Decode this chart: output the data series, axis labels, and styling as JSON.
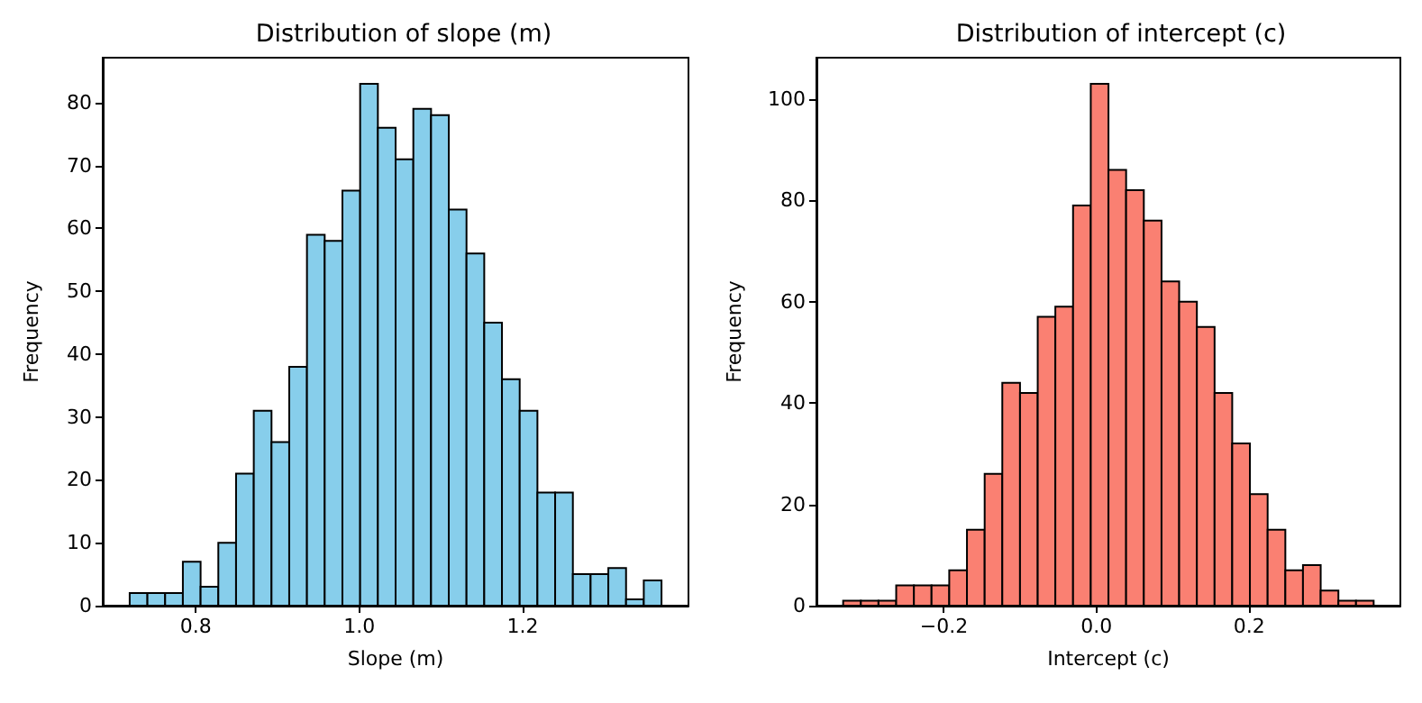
{
  "chart_data": [
    {
      "type": "histogram",
      "title": "Distribution of slope (m)",
      "xlabel": "Slope (m)",
      "ylabel": "Frequency",
      "color": "#87ceeb",
      "bins": [
        0.719,
        0.7407,
        0.7624,
        0.7841,
        0.8058,
        0.8275,
        0.8492,
        0.8709,
        0.8926,
        0.9143,
        0.936,
        0.9577,
        0.9794,
        1.0011,
        1.0228,
        1.0445,
        1.0662,
        1.0879,
        1.1096,
        1.1313,
        1.153,
        1.1747,
        1.1964,
        1.2181,
        1.2398,
        1.2615,
        1.2832,
        1.3049,
        1.3266,
        1.3483,
        1.37
      ],
      "values": [
        2,
        2,
        2,
        7,
        3,
        10,
        21,
        31,
        26,
        38,
        59,
        58,
        66,
        83,
        76,
        71,
        79,
        78,
        63,
        56,
        45,
        36,
        31,
        18,
        18,
        5,
        5,
        6,
        1,
        4
      ],
      "xlim": [
        0.686,
        1.403
      ],
      "xticks": [
        0.8,
        {
          "value": 1,
          "label": "1.0"
        },
        1.2
      ],
      "ylim": [
        0,
        87.15
      ],
      "yticks": [
        0,
        10,
        20,
        30,
        40,
        50,
        60,
        70,
        80
      ]
    },
    {
      "type": "histogram",
      "title": "Distribution of intercept (c)",
      "xlabel": "Intercept (c)",
      "ylabel": "Frequency",
      "color": "#fa8072",
      "bins": [
        -0.332,
        -0.3088,
        -0.2857,
        -0.2625,
        -0.2393,
        -0.2162,
        -0.193,
        -0.1698,
        -0.1466,
        -0.1235,
        -0.1003,
        -0.0771,
        -0.054,
        -0.0308,
        -0.0076,
        0.0156,
        0.0387,
        0.0619,
        0.0851,
        0.1082,
        0.1314,
        0.1546,
        0.1777,
        0.2009,
        0.2241,
        0.2473,
        0.2704,
        0.2936,
        0.3168,
        0.3399,
        0.363
      ],
      "values": [
        1,
        1,
        1,
        4,
        4,
        4,
        7,
        15,
        26,
        44,
        42,
        57,
        59,
        79,
        103,
        86,
        82,
        76,
        64,
        60,
        55,
        42,
        32,
        22,
        15,
        7,
        8,
        3,
        1,
        1
      ],
      "xlim": [
        -0.367,
        0.398
      ],
      "xticks": [
        {
          "value": -0.2,
          "label": "−0.2"
        },
        {
          "value": 0,
          "label": "0.0"
        },
        {
          "value": 0.2,
          "label": "0.2"
        }
      ],
      "ylim": [
        0,
        108.15
      ],
      "yticks": [
        0,
        20,
        40,
        60,
        80,
        100
      ]
    }
  ]
}
